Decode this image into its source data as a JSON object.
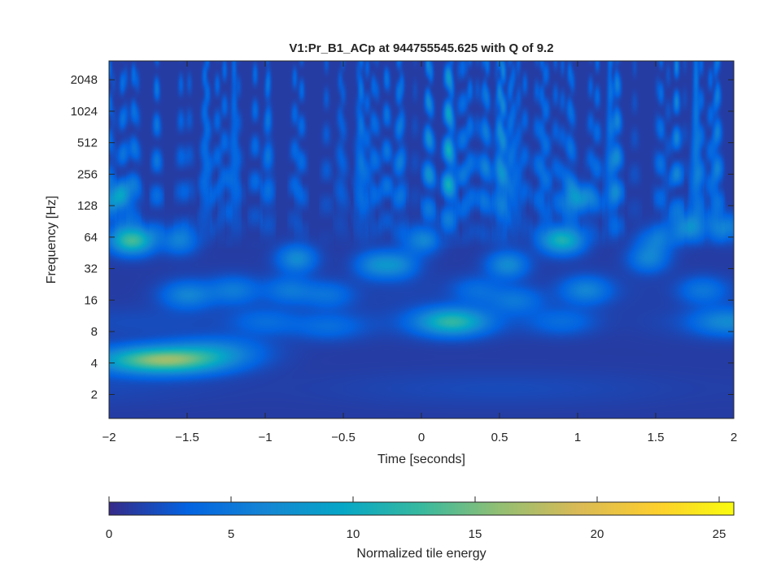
{
  "chart_data": {
    "type": "heatmap",
    "title": "V1:Pr_B1_ACp at 944755545.625 with Q of 9.2",
    "xlabel": "Time [seconds]",
    "ylabel": "Frequency [Hz]",
    "xlim": [
      -2,
      2
    ],
    "ylim": [
      1.18,
      3100
    ],
    "y_scale": "log2",
    "x_ticks": [
      -2,
      -1.5,
      -1,
      -0.5,
      0,
      0.5,
      1,
      1.5,
      2
    ],
    "x_tick_labels": [
      "−2",
      "−1.5",
      "−1",
      "−0.5",
      "0",
      "0.5",
      "1",
      "1.5",
      "2"
    ],
    "y_ticks": [
      2,
      4,
      8,
      16,
      32,
      64,
      128,
      256,
      512,
      1024,
      2048
    ],
    "y_tick_labels": [
      "2",
      "4",
      "8",
      "16",
      "32",
      "64",
      "128",
      "256",
      "512",
      "1024",
      "2048"
    ],
    "grid": false,
    "colormap": "parula",
    "colormap_stops": [
      "#352a87",
      "#0363e1",
      "#1485d4",
      "#06a7c6",
      "#38b99e",
      "#92bf73",
      "#d9ba56",
      "#fcce2e",
      "#f9fb0e"
    ],
    "background_energy": 1,
    "energy_blobs": [
      {
        "t": -1.75,
        "f": 4.3,
        "energy": 10
      },
      {
        "t": -1.5,
        "f": 4.3,
        "energy": 7
      },
      {
        "t": -1.3,
        "f": 5.5,
        "energy": 3.5
      },
      {
        "t": -1.9,
        "f": 60,
        "energy": 8
      },
      {
        "t": -1.8,
        "f": 60,
        "energy": 7
      },
      {
        "t": -1.95,
        "f": 150,
        "energy": 7
      },
      {
        "t": -1.55,
        "f": 60,
        "energy": 5
      },
      {
        "t": -1.5,
        "f": 18,
        "energy": 5
      },
      {
        "t": -1.2,
        "f": 20,
        "energy": 4
      },
      {
        "t": -0.8,
        "f": 40,
        "energy": 6
      },
      {
        "t": -0.85,
        "f": 20,
        "energy": 4
      },
      {
        "t": -0.3,
        "f": 35,
        "energy": 5
      },
      {
        "t": -0.15,
        "f": 35,
        "energy": 5
      },
      {
        "t": 0.15,
        "f": 10,
        "energy": 6
      },
      {
        "t": 0.25,
        "f": 10,
        "energy": 5
      },
      {
        "t": 0.0,
        "f": 60,
        "energy": 5
      },
      {
        "t": 0.55,
        "f": 35,
        "energy": 6
      },
      {
        "t": 0.6,
        "f": 16,
        "energy": 4
      },
      {
        "t": 0.85,
        "f": 60,
        "energy": 6
      },
      {
        "t": 0.95,
        "f": 60,
        "energy": 6
      },
      {
        "t": 1.0,
        "f": 150,
        "energy": 7
      },
      {
        "t": 1.05,
        "f": 20,
        "energy": 5
      },
      {
        "t": 1.45,
        "f": 40,
        "energy": 5
      },
      {
        "t": 1.5,
        "f": 60,
        "energy": 4
      },
      {
        "t": 1.7,
        "f": 80,
        "energy": 6
      },
      {
        "t": 1.95,
        "f": 80,
        "energy": 5
      },
      {
        "t": 1.95,
        "f": 10,
        "energy": 5
      },
      {
        "t": 1.8,
        "f": 20,
        "energy": 4
      },
      {
        "t": -0.6,
        "f": 9,
        "energy": 3
      },
      {
        "t": 0.9,
        "f": 10,
        "energy": 3
      },
      {
        "t": -0.6,
        "f": 18,
        "energy": 3.5
      },
      {
        "t": 0.35,
        "f": 20,
        "energy": 3
      },
      {
        "t": -1.0,
        "f": 10,
        "energy": 3
      }
    ],
    "colorbar": {
      "label": "Normalized tile energy",
      "range": [
        0,
        25.6
      ],
      "ticks": [
        0,
        5,
        10,
        15,
        20,
        25
      ],
      "tick_labels": [
        "0",
        "5",
        "10",
        "15",
        "20",
        "25"
      ]
    }
  }
}
